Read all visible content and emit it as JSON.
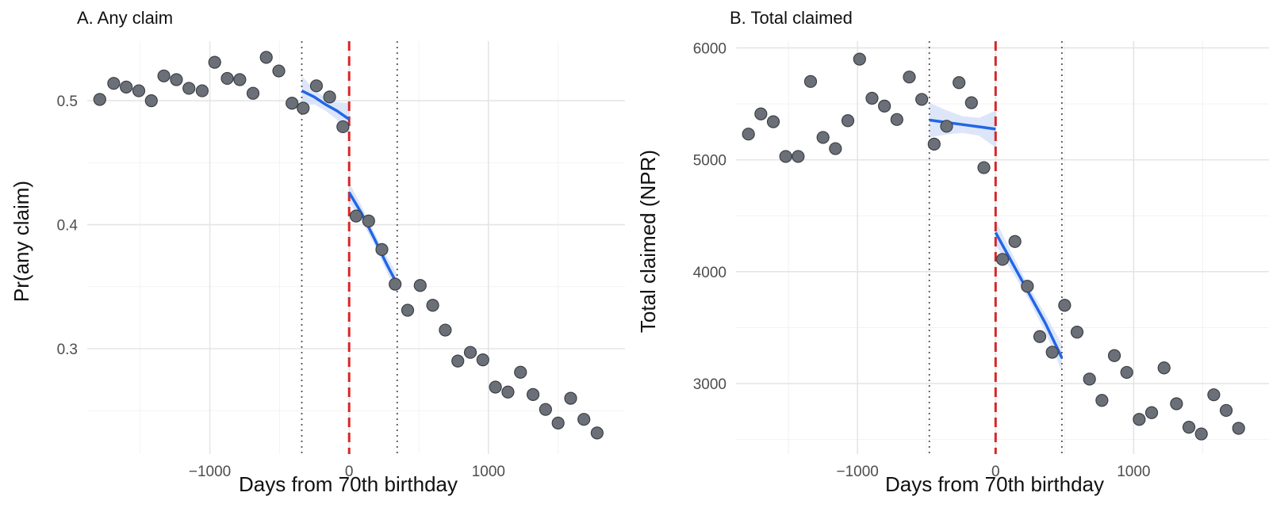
{
  "colors": {
    "points": "#6b7078",
    "fit": "#2166e6",
    "cutoff": "#d62728",
    "ci_band": "#c6d6f5"
  },
  "chart_data": [
    {
      "type": "scatter",
      "title": "A. Any claim",
      "xlabel": "Days from 70th birthday",
      "ylabel": "Pr(any claim)",
      "xlim": [
        -1880,
        1980
      ],
      "ylim": [
        0.215,
        0.548
      ],
      "x_ticks": [
        -1000,
        0,
        1000
      ],
      "x_tick_labels": [
        "−1000",
        "0",
        "1000"
      ],
      "y_ticks": [
        0.3,
        0.4,
        0.5
      ],
      "y_tick_labels": [
        "0.3",
        "0.4",
        "0.5"
      ],
      "cutoff": 0,
      "bandwidth_lines": [
        -340,
        345
      ],
      "grid": true,
      "points": {
        "x": [
          -1790,
          -1690,
          -1600,
          -1510,
          -1420,
          -1330,
          -1240,
          -1150,
          -1055,
          -965,
          -875,
          -785,
          -690,
          -595,
          -505,
          -410,
          -330,
          -235,
          -140,
          -45,
          50,
          140,
          235,
          330,
          420,
          510,
          600,
          690,
          780,
          870,
          960,
          1050,
          1140,
          1230,
          1320,
          1410,
          1500,
          1590,
          1685,
          1780
        ],
        "y": [
          0.501,
          0.514,
          0.511,
          0.508,
          0.5,
          0.52,
          0.517,
          0.51,
          0.508,
          0.531,
          0.518,
          0.517,
          0.506,
          0.535,
          0.524,
          0.498,
          0.494,
          0.512,
          0.503,
          0.479,
          0.407,
          0.403,
          0.38,
          0.352,
          0.331,
          0.351,
          0.335,
          0.315,
          0.29,
          0.297,
          0.291,
          0.269,
          0.265,
          0.281,
          0.263,
          0.251,
          0.24,
          0.26,
          0.243,
          0.232
        ]
      },
      "fits": [
        {
          "x": [
            -340,
            -250,
            -170,
            -90,
            0
          ],
          "y": [
            0.508,
            0.503,
            0.497,
            0.492,
            0.485
          ],
          "lo": [
            0.496,
            0.497,
            0.492,
            0.485,
            0.472
          ],
          "hi": [
            0.52,
            0.509,
            0.502,
            0.499,
            0.498
          ]
        },
        {
          "x": [
            0,
            90,
            180,
            270,
            345
          ],
          "y": [
            0.426,
            0.409,
            0.389,
            0.368,
            0.352
          ],
          "lo": [
            0.418,
            0.403,
            0.384,
            0.362,
            0.344
          ],
          "hi": [
            0.434,
            0.415,
            0.394,
            0.374,
            0.36
          ]
        }
      ]
    },
    {
      "type": "scatter",
      "title": "B. Total claimed",
      "xlabel": "Days from 70th birthday",
      "ylabel": "Total claimed (NPR)",
      "xlim": [
        -1880,
        1980
      ],
      "ylim": [
        2370,
        6060
      ],
      "x_ticks": [
        -1000,
        0,
        1000
      ],
      "x_tick_labels": [
        "−1000",
        "0",
        "1000"
      ],
      "y_ticks": [
        3000,
        4000,
        5000,
        6000
      ],
      "y_tick_labels": [
        "3000",
        "4000",
        "5000",
        "6000"
      ],
      "cutoff": 0,
      "bandwidth_lines": [
        -480,
        480
      ],
      "grid": true,
      "points": {
        "x": [
          -1790,
          -1700,
          -1610,
          -1520,
          -1430,
          -1340,
          -1250,
          -1160,
          -1070,
          -985,
          -895,
          -805,
          -715,
          -625,
          -535,
          -445,
          -355,
          -265,
          -175,
          -85,
          50,
          140,
          230,
          320,
          410,
          500,
          590,
          680,
          770,
          860,
          950,
          1040,
          1130,
          1220,
          1310,
          1400,
          1490,
          1580,
          1670,
          1760
        ],
        "y": [
          5230,
          5410,
          5340,
          5030,
          5030,
          5700,
          5200,
          5100,
          5350,
          5900,
          5550,
          5480,
          5360,
          5740,
          5540,
          5140,
          5300,
          5690,
          5510,
          4930,
          4110,
          4270,
          3870,
          3420,
          3280,
          3700,
          3460,
          3040,
          2850,
          3250,
          3100,
          2680,
          2740,
          3140,
          2820,
          2610,
          2550,
          2900,
          2760,
          2600
        ]
      },
      "fits": [
        {
          "x": [
            -480,
            -360,
            -240,
            -120,
            0
          ],
          "y": [
            5355,
            5335,
            5315,
            5295,
            5275
          ],
          "lo": [
            5200,
            5225,
            5240,
            5215,
            5110
          ],
          "hi": [
            5510,
            5445,
            5390,
            5375,
            5440
          ]
        },
        {
          "x": [
            0,
            120,
            240,
            360,
            480
          ],
          "y": [
            4350,
            4080,
            3810,
            3540,
            3230
          ],
          "lo": [
            4240,
            4000,
            3750,
            3460,
            3110
          ],
          "hi": [
            4460,
            4160,
            3870,
            3620,
            3350
          ]
        }
      ]
    }
  ]
}
